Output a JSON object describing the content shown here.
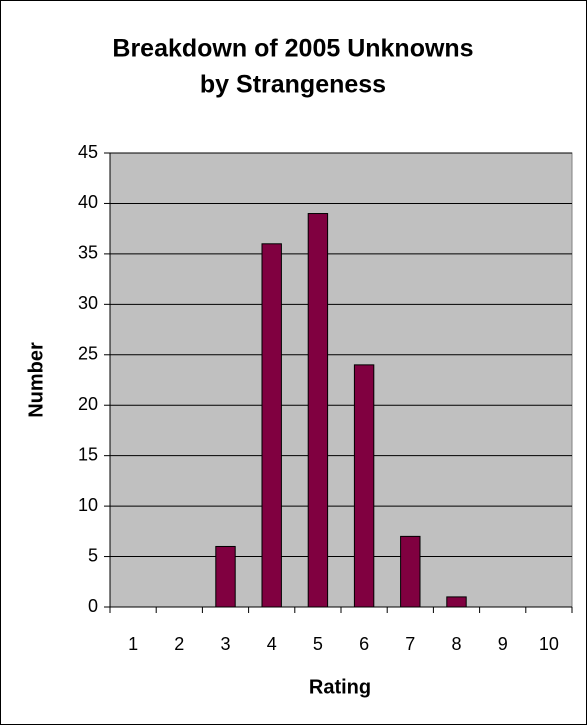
{
  "chart_data": {
    "type": "bar",
    "title": [
      "Breakdown of 2005 Unknowns",
      "by Strangeness"
    ],
    "x_label": "Rating",
    "y_label": "Number",
    "categories": [
      "1",
      "2",
      "3",
      "4",
      "5",
      "6",
      "7",
      "8",
      "9",
      "10"
    ],
    "values": [
      0,
      0,
      6,
      36,
      39,
      24,
      7,
      1,
      0,
      0
    ],
    "color": "#800040",
    "ylim": [
      0,
      45
    ],
    "yticks": [
      0,
      5,
      10,
      15,
      20,
      25,
      30,
      35,
      40,
      45
    ],
    "grid": true
  }
}
